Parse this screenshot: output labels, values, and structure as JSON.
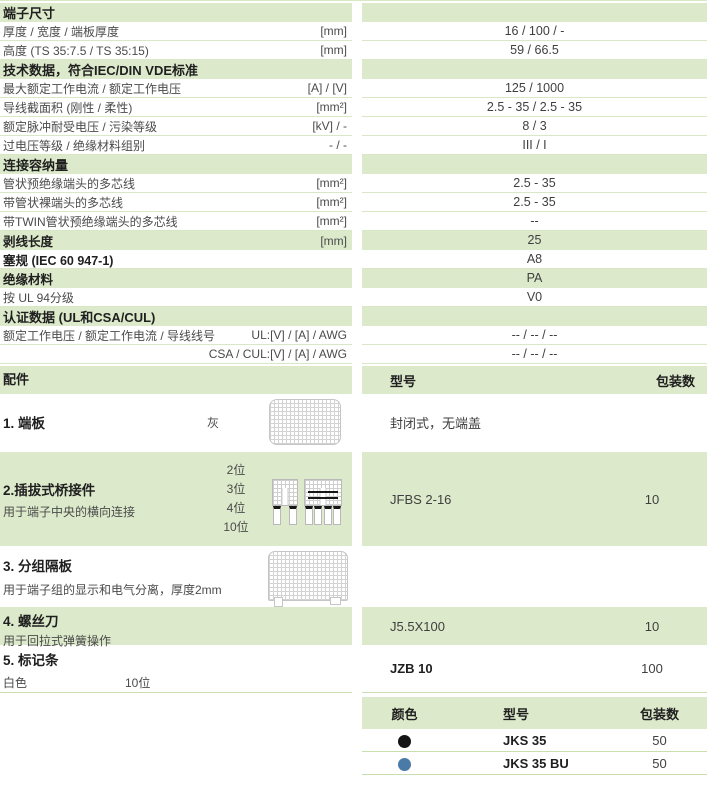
{
  "colors": {
    "band": "#dce9ca",
    "separator_line": "#c9dfae",
    "row_line": "#d9e8c4",
    "text": "#3f3f3f",
    "dot_black": "#141414",
    "dot_blue": "#4a7aa6"
  },
  "spec_table": {
    "rows": [
      {
        "type": "header",
        "label": "端子尺寸"
      },
      {
        "type": "data",
        "label": "厚度 / 宽度 / 端板厚度",
        "unit": "[mm]",
        "value": "16 / 100 / -"
      },
      {
        "type": "data",
        "label": "高度 (TS 35:7.5 / TS 35:15)",
        "unit": "[mm]",
        "value": "59 / 66.5"
      },
      {
        "type": "header",
        "label": "技术数据，符合IEC/DIN VDE标准"
      },
      {
        "type": "data",
        "label": "最大额定工作电流 / 额定工作电压",
        "unit": "[A] / [V]",
        "value": "125 / 1000"
      },
      {
        "type": "data",
        "label": "导线截面积 (刚性 / 柔性)",
        "unit": "[mm²]",
        "value": "2.5 - 35 / 2.5 - 35"
      },
      {
        "type": "data",
        "label": "额定脉冲耐受电压 / 污染等级",
        "unit": "[kV] / -",
        "value": "8 / 3"
      },
      {
        "type": "data",
        "label": "过电压等级 / 绝缘材料组别",
        "unit": "- / -",
        "value": "III / I"
      },
      {
        "type": "header",
        "label": "连接容纳量"
      },
      {
        "type": "data",
        "label": "管状预绝缘端头的多芯线",
        "unit": "[mm²]",
        "value": "2.5 - 35"
      },
      {
        "type": "data",
        "label": "带管状裸端头的多芯线",
        "unit": "[mm²]",
        "value": "2.5 - 35"
      },
      {
        "type": "data",
        "label": "带TWIN管状预绝缘端头的多芯线",
        "unit": "[mm²]",
        "value": "--"
      },
      {
        "type": "data",
        "bold": true,
        "green": true,
        "label": "剥线长度",
        "unit": "[mm]",
        "value": "25"
      },
      {
        "type": "data",
        "bold": true,
        "label": "塞规 (IEC 60 947-1)",
        "unit": "",
        "value": "A8"
      },
      {
        "type": "data",
        "bold": true,
        "green": true,
        "label": "绝缘材料",
        "unit": "",
        "value": "PA"
      },
      {
        "type": "data",
        "label": "按 UL 94分级",
        "unit": "",
        "value": "V0"
      },
      {
        "type": "header",
        "label": "认证数据 (UL和CSA/CUL)"
      },
      {
        "type": "data",
        "label": "额定工作电压 / 额定工作电流 / 导线线号",
        "unit": "UL:[V] / [A] / AWG",
        "value": "-- / -- / --"
      },
      {
        "type": "data",
        "label": "",
        "unit": "CSA / CUL:[V] / [A] / AWG",
        "value": "-- / -- / --"
      }
    ]
  },
  "accessories": {
    "header": {
      "left": "配件",
      "model": "型号",
      "qty": "包装数"
    },
    "items": [
      {
        "no": "1. 端板",
        "variant": "灰",
        "model": "封闭式，无端盖",
        "qty": ""
      },
      {
        "no": "2.插拔式桥接件",
        "desc": "用于端子中央的横向连接",
        "options": [
          "2位",
          "3位",
          "4位",
          "10位"
        ],
        "model": "JFBS 2-16",
        "qty": "10"
      },
      {
        "no": "3. 分组隔板",
        "desc": "用于端子组的显示和电气分离，厚度2mm",
        "model": "",
        "qty": ""
      },
      {
        "no": "4. 螺丝刀",
        "desc": "用于回拉式弹簧操作",
        "model": "J5.5X100",
        "qty": "10"
      },
      {
        "no": "5. 标记条",
        "variant": "白色",
        "size": "10位",
        "model": "JZB 10",
        "qty": "100"
      }
    ]
  },
  "color_table": {
    "headers": {
      "color": "颜色",
      "model": "型号",
      "qty": "包装数"
    },
    "rows": [
      {
        "color_name": "black",
        "color_hex": "#141414",
        "model": "JKS 35",
        "qty": "50"
      },
      {
        "color_name": "blue",
        "color_hex": "#4a7aa6",
        "model": "JKS 35 BU",
        "qty": "50"
      }
    ]
  }
}
